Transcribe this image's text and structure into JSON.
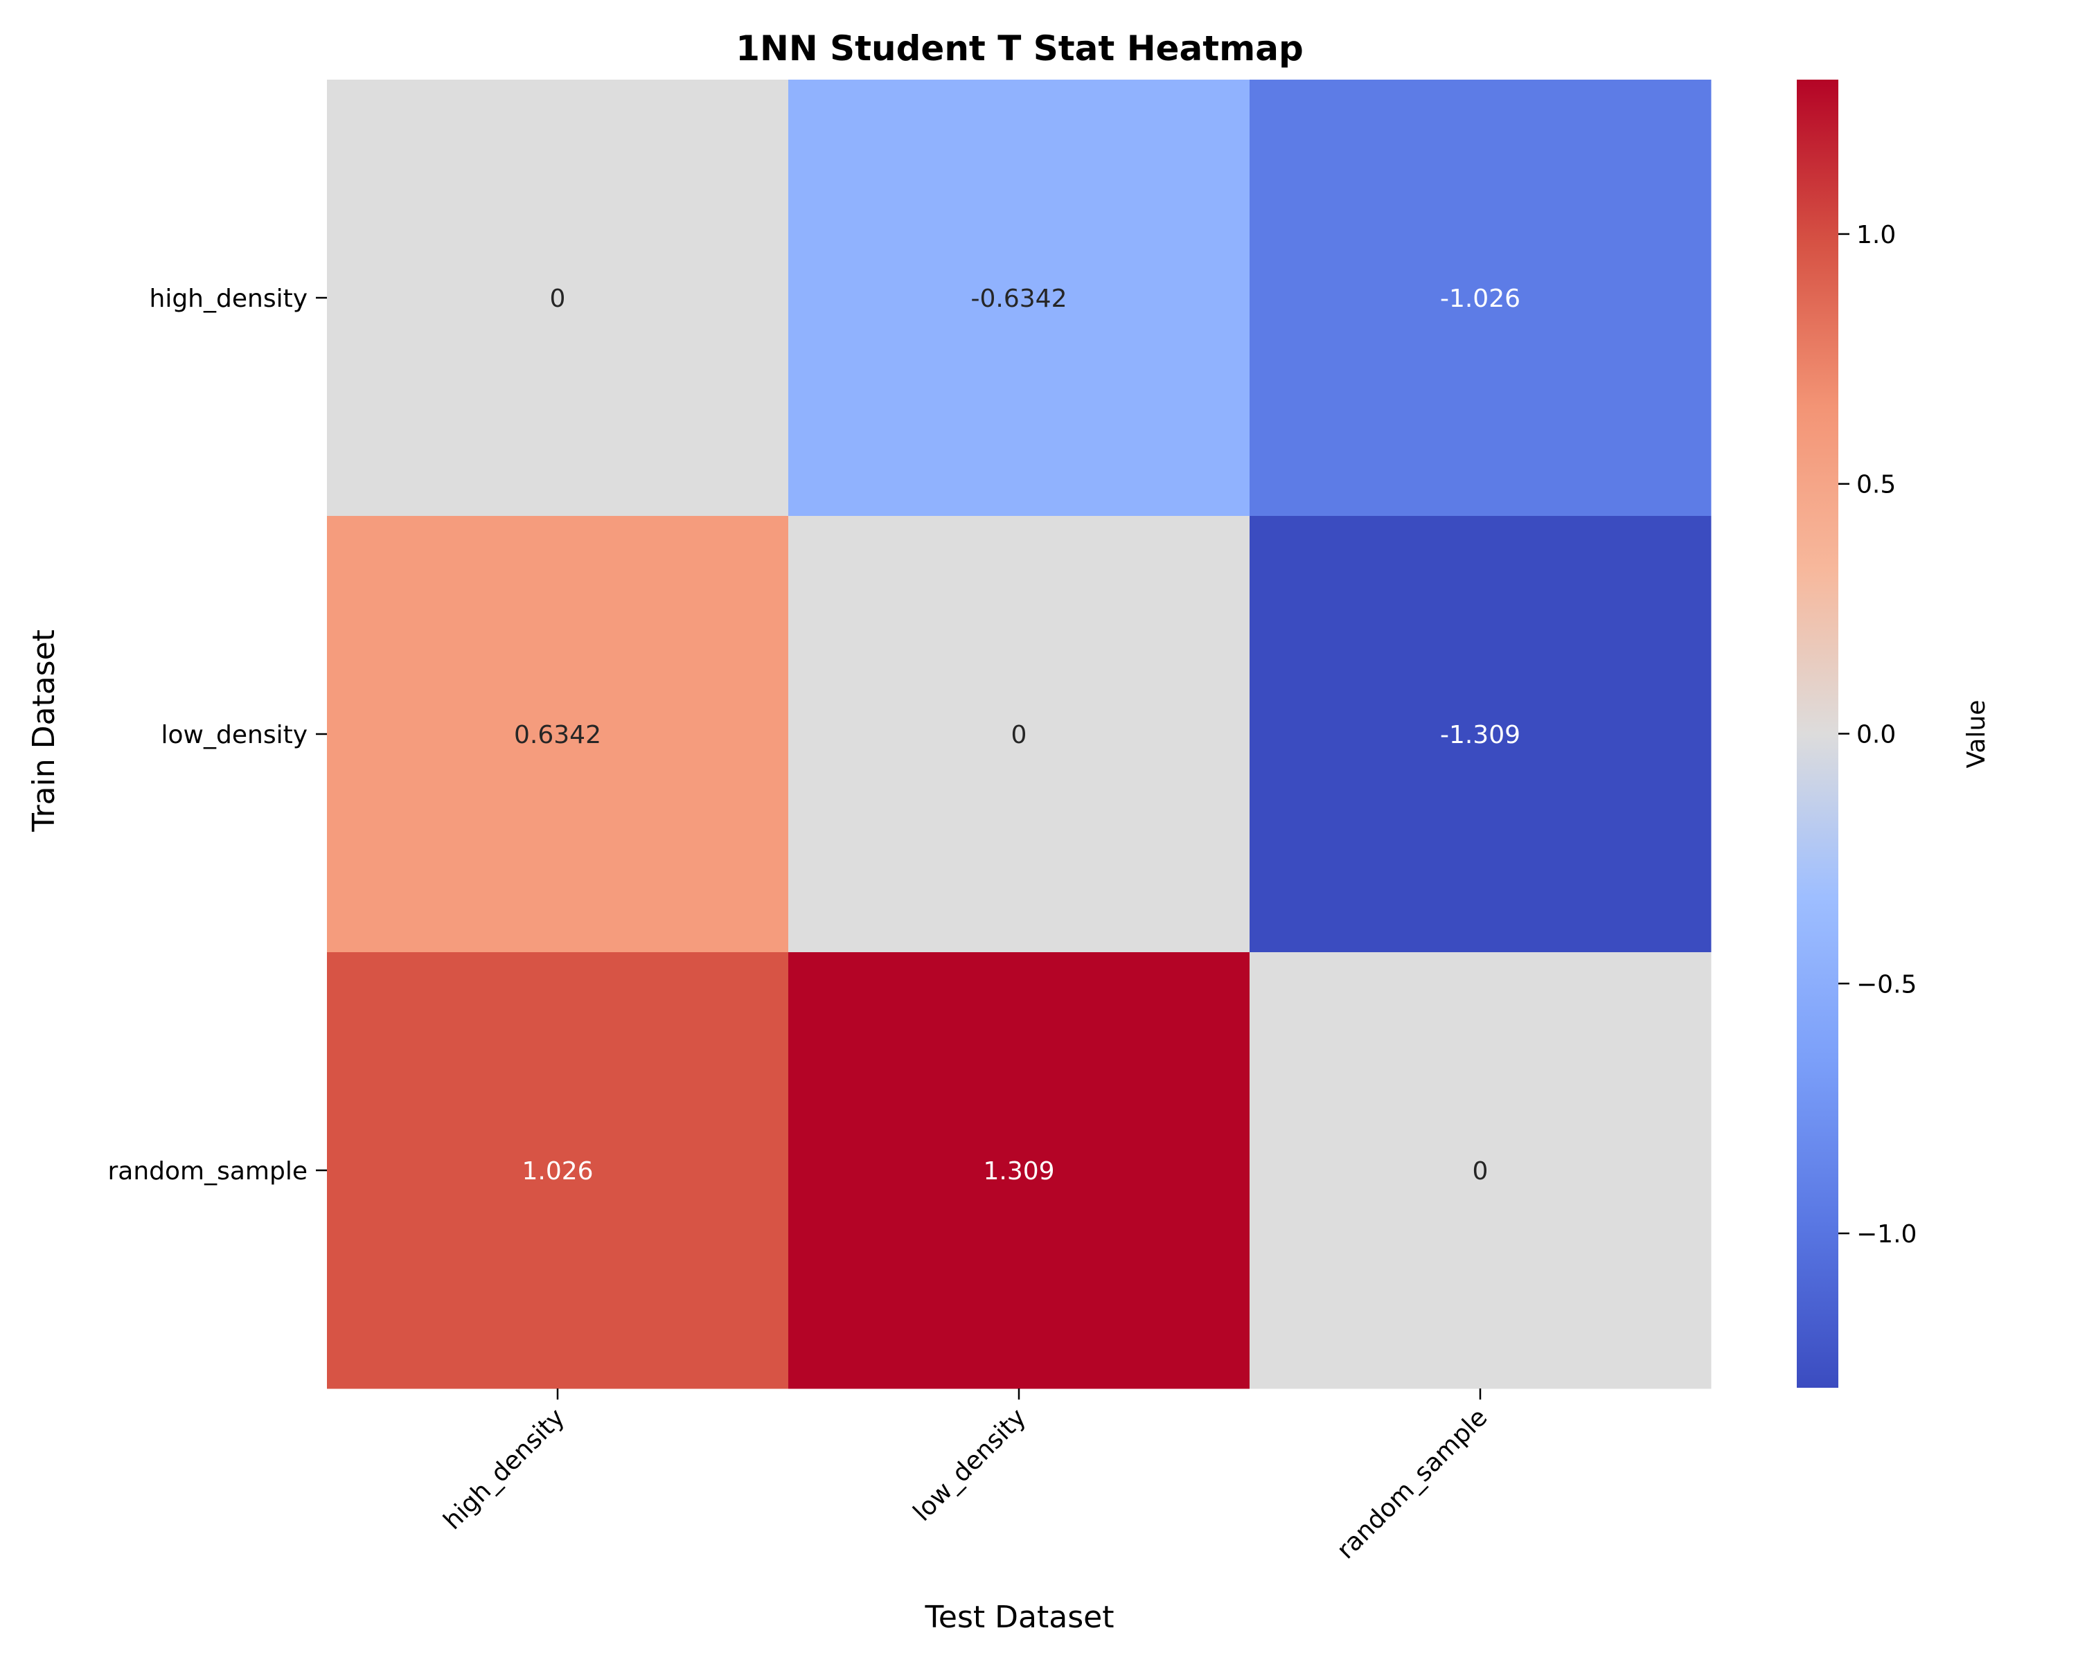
{
  "chart_data": {
    "type": "heatmap",
    "title": "1NN Student T Stat Heatmap",
    "xlabel": "Test Dataset",
    "ylabel": "Train Dataset",
    "x_categories": [
      "high_density",
      "low_density",
      "random_sample"
    ],
    "y_categories": [
      "high_density",
      "low_density",
      "random_sample"
    ],
    "values": [
      [
        0,
        -0.6342,
        -1.026
      ],
      [
        0.6342,
        0,
        -1.309
      ],
      [
        1.026,
        1.309,
        0
      ]
    ],
    "cell_labels": [
      [
        "0",
        "-0.6342",
        "-1.026"
      ],
      [
        "0.6342",
        "0",
        "-1.309"
      ],
      [
        "1.026",
        "1.309",
        "0"
      ]
    ],
    "colorbar": {
      "label": "Value",
      "vmin": -1.309,
      "vmax": 1.309,
      "ticks": [
        1.0,
        0.5,
        0.0,
        -0.5,
        -1.0
      ],
      "tick_labels": [
        "1.0",
        "0.5",
        "0.0",
        "−0.5",
        "−1.0"
      ],
      "colormap": "coolwarm"
    },
    "colors": {
      "cell_0_0": "#dddddd",
      "cell_0_1": "#90b2fe",
      "cell_0_2": "#5d7ce6",
      "cell_1_0": "#f59c7d",
      "cell_1_1": "#dddddd",
      "cell_1_2": "#3b4cc0",
      "cell_2_0": "#d75445",
      "cell_2_1": "#b40426",
      "cell_2_2": "#dddddd"
    },
    "grid": false
  }
}
